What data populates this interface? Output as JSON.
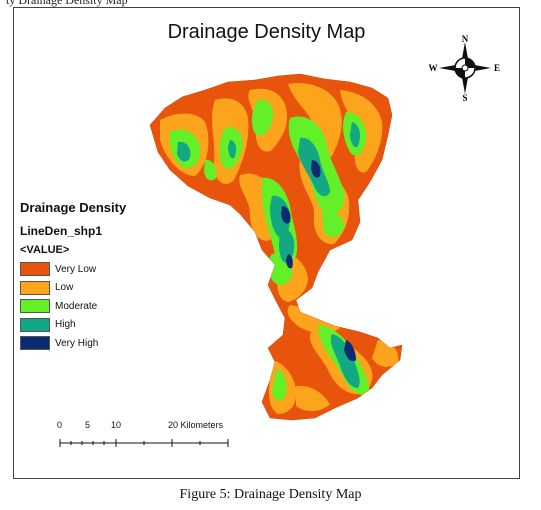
{
  "header": {
    "partial_text": "ty Drainage Density Map"
  },
  "map": {
    "title": "Drainage Density Map",
    "classes": [
      {
        "label": "Very Low",
        "color": "#e8540c"
      },
      {
        "label": "Low",
        "color": "#fca41c"
      },
      {
        "label": "Moderate",
        "color": "#64f028"
      },
      {
        "label": "High",
        "color": "#12a884"
      },
      {
        "label": "Very High",
        "color": "#0b2a74"
      }
    ]
  },
  "legend": {
    "title": "Drainage Density",
    "layer": "LineDen_shp1",
    "field": "<VALUE>"
  },
  "north_arrow": {
    "n": "N",
    "s": "S",
    "e": "E",
    "w": "W"
  },
  "scale_bar": {
    "labels": [
      "0",
      "5",
      "10",
      "20 Kilometers"
    ]
  },
  "caption": "Figure 5: Drainage Density Map"
}
